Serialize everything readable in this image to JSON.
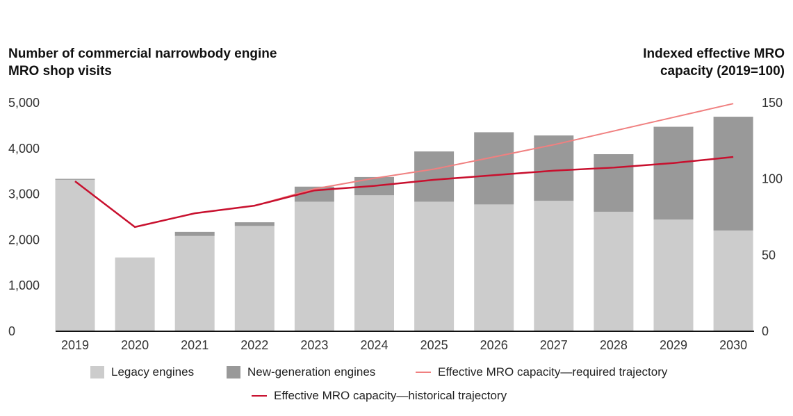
{
  "chart_data": {
    "type": "bar",
    "stacked": true,
    "left_axis_title": "Number of commercial narrowbody engine MRO shop visits",
    "right_axis_title": "Indexed effective MRO capacity (2019=100)",
    "categories": [
      "2019",
      "2020",
      "2021",
      "2022",
      "2023",
      "2024",
      "2025",
      "2026",
      "2027",
      "2028",
      "2029",
      "2030"
    ],
    "ylim_left": [
      0,
      5000
    ],
    "yticks_left": [
      "0",
      "1,000",
      "2,000",
      "3,000",
      "4,000",
      "5,000"
    ],
    "ylim_right": [
      0,
      150
    ],
    "yticks_right": [
      "0",
      "50",
      "100",
      "150"
    ],
    "grid": false,
    "legend_placement": "bottom",
    "series": [
      {
        "name": "Legacy engines",
        "type": "bar",
        "axis": "left",
        "color": "#cccccc",
        "values": [
          3300,
          1600,
          2070,
          2290,
          2820,
          2960,
          2820,
          2760,
          2840,
          2600,
          2430,
          2190
        ]
      },
      {
        "name": "New-generation engines",
        "type": "bar",
        "axis": "left",
        "color": "#999999",
        "values": [
          20,
          0,
          90,
          80,
          330,
          400,
          1100,
          1580,
          1430,
          1260,
          2030,
          2490
        ]
      },
      {
        "name": "Effective MRO capacity—required trajectory",
        "type": "line",
        "axis": "right",
        "color": "#f08080",
        "values": [
          null,
          null,
          null,
          82,
          93,
          100,
          106,
          114,
          122,
          131,
          140,
          149
        ]
      },
      {
        "name": "Effective MRO capacity—historical trajectory",
        "type": "line",
        "axis": "right",
        "color": "#c8102e",
        "values": [
          98,
          68,
          77,
          82,
          92,
          95,
          99,
          102,
          105,
          107,
          110,
          114
        ]
      }
    ]
  }
}
